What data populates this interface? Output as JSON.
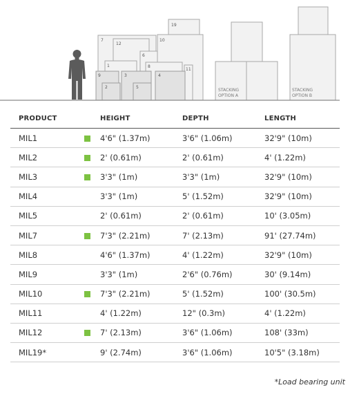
{
  "illustration": {
    "box_numbers": [
      "19",
      "7",
      "12",
      "10",
      "6",
      "1",
      "8",
      "9",
      "3",
      "4",
      "11",
      "2",
      "5"
    ],
    "stacking_a": [
      "STACKING",
      "OPTION A"
    ],
    "stacking_b": [
      "STACKING",
      "OPTION B"
    ]
  },
  "table": {
    "headers": {
      "product": "PRODUCT",
      "height": "HEIGHT",
      "depth": "DEPTH",
      "length": "LENGTH"
    },
    "rows": [
      {
        "product": "MIL1",
        "marker": true,
        "height": "4'6\" (1.37m)",
        "depth": "3'6\" (1.06m)",
        "length": "32'9\" (10m)"
      },
      {
        "product": "MIL2",
        "marker": true,
        "height": "2' (0.61m)",
        "depth": "2' (0.61m)",
        "length": "4' (1.22m)"
      },
      {
        "product": "MIL3",
        "marker": true,
        "height": "3'3\" (1m)",
        "depth": "3'3\" (1m)",
        "length": "32'9\" (10m)"
      },
      {
        "product": "MIL4",
        "marker": false,
        "height": "3'3\" (1m)",
        "depth": "5' (1.52m)",
        "length": "32'9\" (10m)"
      },
      {
        "product": "MIL5",
        "marker": false,
        "height": "2' (0.61m)",
        "depth": "2' (0.61m)",
        "length": "10' (3.05m)"
      },
      {
        "product": "MIL7",
        "marker": true,
        "height": "7'3\" (2.21m)",
        "depth": "7' (2.13m)",
        "length": "91' (27.74m)"
      },
      {
        "product": "MIL8",
        "marker": false,
        "height": "4'6\" (1.37m)",
        "depth": "4' (1.22m)",
        "length": "32'9\" (10m)"
      },
      {
        "product": "MIL9",
        "marker": false,
        "height": "3'3\" (1m)",
        "depth": "2'6\" (0.76m)",
        "length": "30' (9.14m)"
      },
      {
        "product": "MIL10",
        "marker": true,
        "height": "7'3\" (2.21m)",
        "depth": "5' (1.52m)",
        "length": "100' (30.5m)"
      },
      {
        "product": "MIL11",
        "marker": false,
        "height": "4' (1.22m)",
        "depth": "12\" (0.3m)",
        "length": "4' (1.22m)"
      },
      {
        "product": "MIL12",
        "marker": true,
        "height": "7' (2.13m)",
        "depth": "3'6\" (1.06m)",
        "length": "108' (33m)"
      },
      {
        "product": "MIL19*",
        "marker": false,
        "height": "9' (2.74m)",
        "depth": "3'6\" (1.06m)",
        "length": "10'5\" (3.18m)"
      }
    ]
  },
  "footnote": "*Load bearing unit",
  "colors": {
    "marker": "#7dc242",
    "text": "#333333",
    "rule": "#cfcfcf"
  }
}
